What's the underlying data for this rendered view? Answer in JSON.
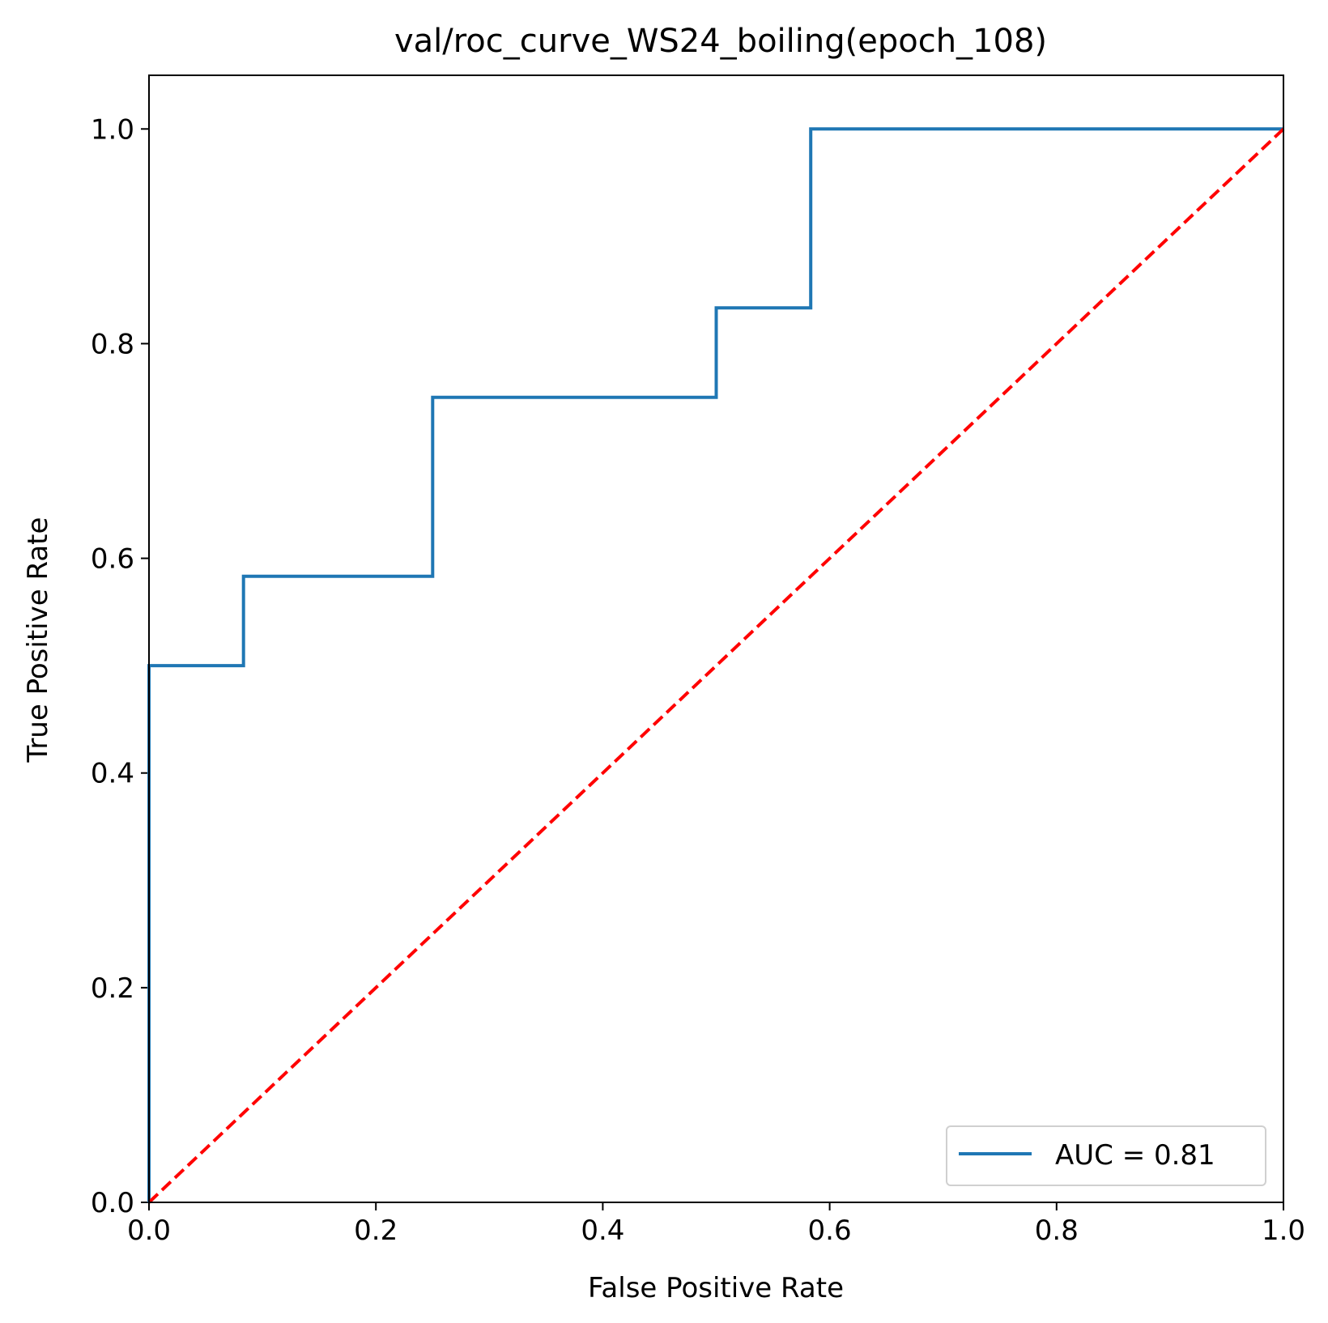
{
  "chart_data": {
    "type": "line",
    "title": "val/roc_curve_WS24_boiling(epoch_108)",
    "xlabel": "False Positive Rate",
    "ylabel": "True Positive Rate",
    "xlim": [
      0.0,
      1.0
    ],
    "ylim": [
      0.0,
      1.05
    ],
    "xticks": [
      0.0,
      0.2,
      0.4,
      0.6,
      0.8,
      1.0
    ],
    "xtick_labels": [
      "0.0",
      "0.2",
      "0.4",
      "0.6",
      "0.8",
      "1.0"
    ],
    "yticks": [
      0.0,
      0.2,
      0.4,
      0.6,
      0.8,
      1.0
    ],
    "ytick_labels": [
      "0.0",
      "0.2",
      "0.4",
      "0.6",
      "0.8",
      "1.0"
    ],
    "grid": false,
    "legend_position": "lower-right",
    "series": [
      {
        "name": "AUC = 0.81",
        "color": "#1f77b4",
        "style": "solid",
        "x": [
          0.0,
          0.0,
          0.0833,
          0.0833,
          0.25,
          0.25,
          0.5,
          0.5,
          0.5833,
          0.5833,
          1.0
        ],
        "y": [
          0.0,
          0.5,
          0.5,
          0.5833,
          0.5833,
          0.75,
          0.75,
          0.8333,
          0.8333,
          1.0,
          1.0
        ]
      },
      {
        "color": "#ff0000",
        "style": "dashed",
        "x": [
          0.0,
          1.0
        ],
        "y": [
          0.0,
          1.0
        ]
      }
    ]
  }
}
